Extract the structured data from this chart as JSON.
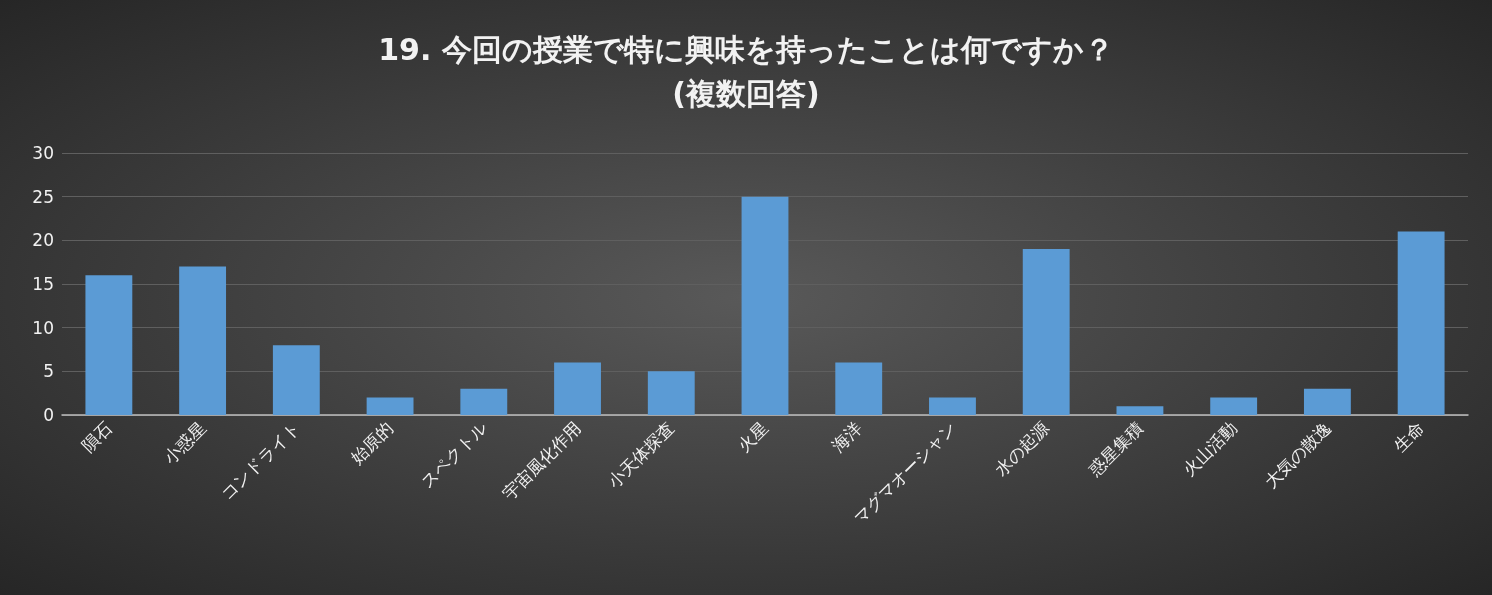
{
  "chart_data": {
    "type": "bar",
    "title": "19. 今回の授業で特に興味を持ったことは何ですか？\n(複数回答)",
    "categories": [
      "隕石",
      "小惑星",
      "コンドライト",
      "始原的",
      "スペクトル",
      "宇宙風化作用",
      "小天体探査",
      "火星",
      "海洋",
      "マグマオーシャン",
      "水の起源",
      "惑星集積",
      "火山活動",
      "大気の散逸",
      "生命"
    ],
    "values": [
      16,
      17,
      8,
      2,
      3,
      6,
      5,
      25,
      6,
      2,
      19,
      1,
      2,
      3,
      21
    ],
    "color": "#5b9bd5",
    "ylim": [
      0,
      30
    ],
    "yticks": [
      0,
      5,
      10,
      15,
      20,
      25,
      30
    ],
    "grid": "y"
  }
}
